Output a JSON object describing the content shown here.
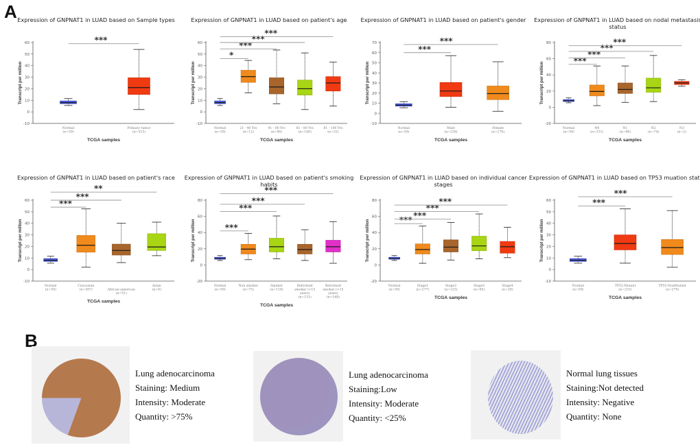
{
  "labels": {
    "panel_a": "A",
    "panel_b": "B"
  },
  "colors": {
    "normal": "#4a5be0",
    "red": "#f03a12",
    "orange": "#f08a1c",
    "brown": "#a8652c",
    "lime": "#a8d514",
    "magenta": "#e030c8",
    "sig_line": "#9a9a9a"
  },
  "chart_data": [
    {
      "type": "box",
      "title": "Expression of GNPNAT1 in LUAD based on Sample types",
      "xlabel": "TCGA samples",
      "ylabel": "Transcript per million",
      "ylim": [
        -10,
        60
      ],
      "yticks": [
        -10,
        0,
        10,
        20,
        30,
        40,
        50,
        60
      ],
      "categories": [
        {
          "name": "Normal",
          "n": "(n=59)",
          "color": "normal",
          "min": 5.5,
          "q1": 7,
          "median": 8,
          "q3": 9.5,
          "max": 11.5
        },
        {
          "name": "Primary tumor",
          "n": "(n=515)",
          "color": "red",
          "min": 2,
          "q1": 15,
          "median": 21,
          "q3": 29.5,
          "max": 54
        }
      ],
      "significance": [
        {
          "from": 0,
          "to": 1,
          "label": "***",
          "y": 59
        }
      ]
    },
    {
      "type": "box",
      "title": "Expression of GNPNAT1 in LUAD based on patient's age",
      "xlabel": "TCGA samples",
      "ylabel": "Transcript per million",
      "ylim": [
        -10,
        60
      ],
      "yticks": [
        -10,
        0,
        10,
        20,
        30,
        40,
        50,
        60
      ],
      "categories": [
        {
          "name": "Normal",
          "n": "(n=59)",
          "color": "normal",
          "min": 5.5,
          "q1": 7,
          "median": 8,
          "q3": 9.5,
          "max": 11.5
        },
        {
          "name": "21 - 40 Yrs",
          "n": "(n=12)",
          "color": "orange",
          "min": 16.5,
          "q1": 25.5,
          "median": 30.5,
          "q3": 36,
          "max": 44.5
        },
        {
          "name": "41 - 60 Yrs",
          "n": "(n=90)",
          "color": "brown",
          "min": 7,
          "q1": 15.5,
          "median": 21.5,
          "q3": 29.5,
          "max": 53.5
        },
        {
          "name": "61 - 80 Yrs",
          "n": "(n=149)",
          "color": "lime",
          "min": 2,
          "q1": 14.5,
          "median": 20,
          "q3": 27.5,
          "max": 51
        },
        {
          "name": "81 - 100 Yrs",
          "n": "(n=32)",
          "color": "red",
          "min": 5,
          "q1": 18,
          "median": 25,
          "q3": 30.5,
          "max": 43
        }
      ],
      "significance": [
        {
          "from": 0,
          "to": 1,
          "label": "*",
          "y": 46
        },
        {
          "from": 0,
          "to": 2,
          "label": "***",
          "y": 54.5
        },
        {
          "from": 0,
          "to": 3,
          "label": "***",
          "y": 60
        },
        {
          "from": 0,
          "to": 4,
          "label": "***",
          "y": 65
        }
      ]
    },
    {
      "type": "box",
      "title": "Expression of GNPNAT1 in LUAD based on patient's gender",
      "xlabel": "TCGA samples",
      "ylabel": "Transcript per million",
      "ylim": [
        -10,
        70
      ],
      "yticks": [
        -10,
        0,
        10,
        20,
        30,
        40,
        50,
        60,
        70
      ],
      "categories": [
        {
          "name": "Normal",
          "n": "(n=59)",
          "color": "normal",
          "min": 5.5,
          "q1": 7,
          "median": 8,
          "q3": 9.5,
          "max": 11.5
        },
        {
          "name": "Male",
          "n": "(n=238)",
          "color": "red",
          "min": 6,
          "q1": 16.5,
          "median": 22,
          "q3": 30.5,
          "max": 57
        },
        {
          "name": "Female",
          "n": "(n=276)",
          "color": "orange",
          "min": 2,
          "q1": 13.5,
          "median": 19.5,
          "q3": 27,
          "max": 51
        }
      ],
      "significance": [
        {
          "from": 0,
          "to": 1,
          "label": "***",
          "y": 60
        },
        {
          "from": 0,
          "to": 2,
          "label": "***",
          "y": 68
        }
      ]
    },
    {
      "type": "box",
      "title": "Expression of GNPNAT1 in LUAD based on nodal metastasis status",
      "xlabel": "TCGA samples",
      "ylabel": "Transcript per million",
      "ylim": [
        -20,
        80
      ],
      "yticks": [
        -20,
        0,
        20,
        40,
        60,
        80
      ],
      "categories": [
        {
          "name": "Normal",
          "n": "(n=59)",
          "color": "normal",
          "min": 5.5,
          "q1": 7,
          "median": 8,
          "q3": 9.5,
          "max": 11.5
        },
        {
          "name": "N0",
          "n": "(n=331)",
          "color": "orange",
          "min": 2,
          "q1": 14,
          "median": 19.5,
          "q3": 27.5,
          "max": 51
        },
        {
          "name": "N1",
          "n": "(n=96)",
          "color": "brown",
          "min": 6,
          "q1": 17,
          "median": 22,
          "q3": 30,
          "max": 51
        },
        {
          "name": "N2",
          "n": "(n=74)",
          "color": "lime",
          "min": 7,
          "q1": 18.5,
          "median": 24,
          "q3": 36,
          "max": 64
        },
        {
          "name": "N3",
          "n": "(n=2)",
          "color": "red",
          "min": 26,
          "q1": 28,
          "median": 30,
          "q3": 32,
          "max": 34
        }
      ],
      "significance": [
        {
          "from": 0,
          "to": 1,
          "label": "***",
          "y": 53
        },
        {
          "from": 0,
          "to": 2,
          "label": "***",
          "y": 61
        },
        {
          "from": 0,
          "to": 3,
          "label": "***",
          "y": 69
        },
        {
          "from": 0,
          "to": 4,
          "label": "***",
          "y": 76
        }
      ]
    },
    {
      "type": "box",
      "title": "Expression of GNPNAT1 in LUAD based on patient's race",
      "xlabel": "TCGA samples",
      "ylabel": "Transcript per million",
      "ylim": [
        -10,
        60
      ],
      "yticks": [
        -10,
        0,
        10,
        20,
        30,
        40,
        50,
        60
      ],
      "categories": [
        {
          "name": "Normal",
          "n": "(n=59)",
          "color": "normal",
          "min": 5.5,
          "q1": 7,
          "median": 8,
          "q3": 9.5,
          "max": 11.5
        },
        {
          "name": "Caucasian",
          "n": "(n=387)",
          "color": "orange",
          "min": 2,
          "q1": 15,
          "median": 21,
          "q3": 29.5,
          "max": 52.5
        },
        {
          "name": "African-american",
          "n": "(n=51)",
          "color": "brown",
          "min": 6,
          "q1": 12.5,
          "median": 16.5,
          "q3": 22,
          "max": 40
        },
        {
          "name": "Asian",
          "n": "(n=8)",
          "color": "lime",
          "min": 12,
          "q1": 16.5,
          "median": 19.5,
          "q3": 31,
          "max": 41
        }
      ],
      "significance": [
        {
          "from": 0,
          "to": 1,
          "label": "***",
          "y": 54
        },
        {
          "from": 0,
          "to": 2,
          "label": "***",
          "y": 60
        },
        {
          "from": 0,
          "to": 3,
          "label": "**",
          "y": 67
        }
      ]
    },
    {
      "type": "box",
      "title": "Expression of GNPNAT1 in LUAD based on patient's smoking habits",
      "xlabel": "TCGA samples",
      "ylabel": "Transcript per million",
      "ylim": [
        -20,
        80
      ],
      "yticks": [
        -20,
        0,
        20,
        40,
        60,
        80
      ],
      "categories": [
        {
          "name": "Normal",
          "n": "(n=59)",
          "color": "normal",
          "min": 5.5,
          "q1": 7,
          "median": 8,
          "q3": 9.5,
          "max": 11.5
        },
        {
          "name": "Non smoker",
          "n": "(n=75)",
          "color": "orange",
          "min": 6.5,
          "q1": 13.5,
          "median": 19.5,
          "q3": 25.5,
          "max": 39
        },
        {
          "name": "Smoker",
          "n": "(n=118)",
          "color": "lime",
          "min": 7.5,
          "q1": 16,
          "median": 22.5,
          "q3": 33,
          "max": 60.5
        },
        {
          "name": "Reformed smoker (<15 years)",
          "n": "(n=131)",
          "color": "brown",
          "min": 5.5,
          "q1": 13.5,
          "median": 19,
          "q3": 25.5,
          "max": 43.5
        },
        {
          "name": "Reformed smoker (>15 years)",
          "n": "(n=168)",
          "color": "magenta",
          "min": 2,
          "q1": 16,
          "median": 22.5,
          "q3": 30.5,
          "max": 53.5
        }
      ],
      "significance": [
        {
          "from": 0,
          "to": 1,
          "label": "***",
          "y": 42
        },
        {
          "from": 0,
          "to": 2,
          "label": "***",
          "y": 66
        },
        {
          "from": 0,
          "to": 3,
          "label": "***",
          "y": 75
        },
        {
          "from": 0,
          "to": 4,
          "label": "***",
          "y": 88
        }
      ]
    },
    {
      "type": "box",
      "title": "Expression of GNPNAT1 in LUAD based on individual cancer stages",
      "xlabel": "TCGA samples",
      "ylabel": "Transcript per million",
      "ylim": [
        -20,
        80
      ],
      "yticks": [
        -20,
        0,
        20,
        40,
        60,
        80
      ],
      "categories": [
        {
          "name": "Normal",
          "n": "(n=59)",
          "color": "normal",
          "min": 5.5,
          "q1": 7,
          "median": 8,
          "q3": 9.5,
          "max": 11.5
        },
        {
          "name": "Stage1",
          "n": "(n=277)",
          "color": "orange",
          "min": 2,
          "q1": 13.5,
          "median": 19,
          "q3": 26,
          "max": 48
        },
        {
          "name": "Stage2",
          "n": "(n=125)",
          "color": "brown",
          "min": 6,
          "q1": 16,
          "median": 22,
          "q3": 31,
          "max": 52.5
        },
        {
          "name": "Stage3",
          "n": "(n=85)",
          "color": "lime",
          "min": 7.5,
          "q1": 17.5,
          "median": 23.5,
          "q3": 35.5,
          "max": 63
        },
        {
          "name": "Stage4",
          "n": "(n=28)",
          "color": "red",
          "min": 9,
          "q1": 14.5,
          "median": 22.5,
          "q3": 29,
          "max": 46.5
        }
      ],
      "significance": [
        {
          "from": 0,
          "to": 1,
          "label": "***",
          "y": 51
        },
        {
          "from": 0,
          "to": 2,
          "label": "***",
          "y": 56.5
        },
        {
          "from": 0,
          "to": 3,
          "label": "***",
          "y": 66
        },
        {
          "from": 0,
          "to": 4,
          "label": "***",
          "y": 74
        }
      ]
    },
    {
      "type": "box",
      "title": "Expression of GNPNAT1 in LUAD based on TP53 muation status",
      "xlabel": "TCGA samples",
      "ylabel": "Transcript per million",
      "ylim": [
        -10,
        60
      ],
      "yticks": [
        -10,
        0,
        10,
        20,
        30,
        40,
        50,
        60
      ],
      "categories": [
        {
          "name": "Normal",
          "n": "(n=59)",
          "color": "normal",
          "min": 5.5,
          "q1": 7,
          "median": 8,
          "q3": 9.5,
          "max": 11.5
        },
        {
          "name": "TP53-Mutant",
          "n": "(n=233)",
          "color": "red",
          "min": 5.5,
          "q1": 17,
          "median": 22.5,
          "q3": 30,
          "max": 52.5
        },
        {
          "name": "TP53-NonMutant",
          "n": "(n=279)",
          "color": "orange",
          "min": 2,
          "q1": 13,
          "median": 19,
          "q3": 26,
          "max": 51
        }
      ],
      "significance": [
        {
          "from": 0,
          "to": 1,
          "label": "***",
          "y": 55
        },
        {
          "from": 0,
          "to": 2,
          "label": "***",
          "y": 63
        }
      ]
    }
  ],
  "ihc": [
    {
      "tissue": "Lung adenocarcinoma",
      "staining": "Staining: Medium",
      "intensity": "Intensity:  Moderate",
      "quantity": "Quantity:  >75%",
      "stain_color": "#b5794e"
    },
    {
      "tissue": "Lung adenocarcinoma",
      "staining": "Staining:Low",
      "intensity": "Intensity:  Moderate",
      "quantity": "Quantity:  <25%",
      "stain_color": "#9f93bd"
    },
    {
      "tissue": "Normal lung tissues",
      "staining": "Staining:Not detected",
      "intensity": "Intensity:  Negative",
      "quantity": "Quantity:  None",
      "stain_color": "#8a8ac6"
    }
  ]
}
